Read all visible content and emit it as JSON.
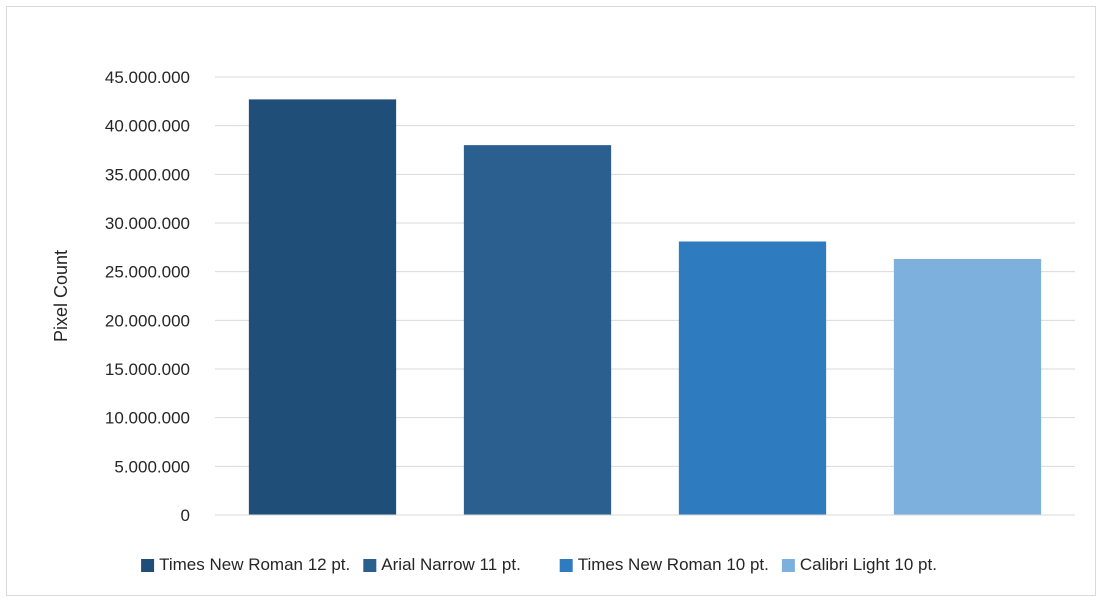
{
  "chart_data": {
    "type": "bar",
    "title": "",
    "xlabel": "",
    "ylabel": "Pixel Count",
    "ylim": [
      0,
      45000000
    ],
    "y_ticks": [
      {
        "value": 0,
        "label": "0"
      },
      {
        "value": 5000000,
        "label": "5.000.000"
      },
      {
        "value": 10000000,
        "label": "10.000.000"
      },
      {
        "value": 15000000,
        "label": "15.000.000"
      },
      {
        "value": 20000000,
        "label": "20.000.000"
      },
      {
        "value": 25000000,
        "label": "25.000.000"
      },
      {
        "value": 30000000,
        "label": "30.000.000"
      },
      {
        "value": 35000000,
        "label": "35.000.000"
      },
      {
        "value": 40000000,
        "label": "40.000.000"
      },
      {
        "value": 45000000,
        "label": "45.000.000"
      }
    ],
    "grid": true,
    "legend_position": "bottom",
    "series": [
      {
        "name": "Times New Roman 12 pt.",
        "value": 42700000,
        "color": "#1f4e79"
      },
      {
        "name": "Arial Narrow 11 pt.",
        "value": 38000000,
        "color": "#2a5f8f"
      },
      {
        "name": "Times New Roman 10 pt.",
        "value": 28100000,
        "color": "#2f7bc0"
      },
      {
        "name": "Calibri Light 10 pt.",
        "value": 26300000,
        "color": "#7eb0de"
      }
    ]
  }
}
